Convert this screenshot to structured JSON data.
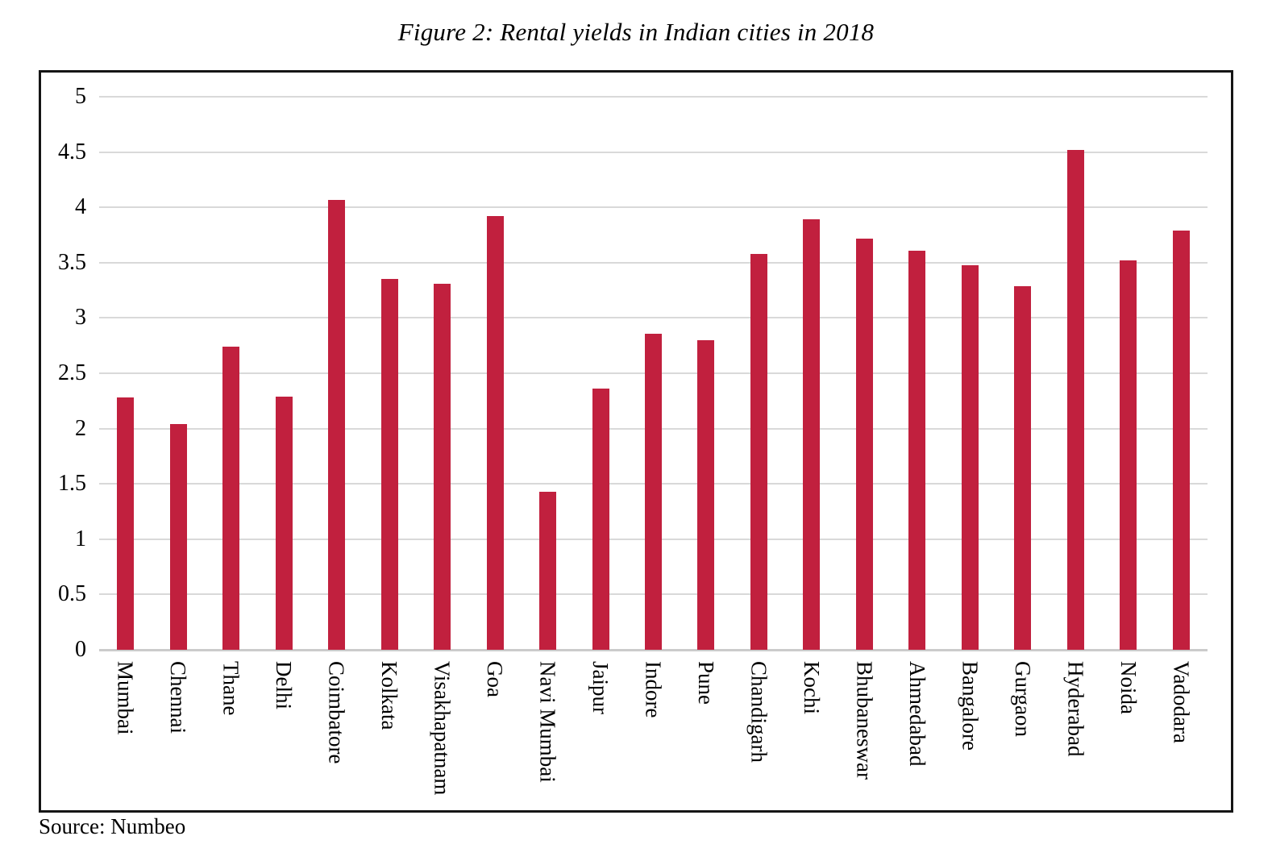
{
  "title": "Figure 2: Rental yields in Indian cities in 2018",
  "source": "Source: Numbeo",
  "chart_data": {
    "type": "bar",
    "title": "Figure 2: Rental yields in Indian cities in 2018",
    "categories": [
      "Mumbai",
      "Chennai",
      "Thane",
      "Delhi",
      "Coimbatore",
      "Kolkata",
      "Visakhapatnam",
      "Goa",
      "Navi Mumbai",
      "Jaipur",
      "Indore",
      "Pune",
      "Chandigarh",
      "Kochi",
      "Bhubaneswar",
      "Ahmedabad",
      "Bangalore",
      "Gurgaon",
      "Hyderabad",
      "Noida",
      "Vadodara"
    ],
    "values": [
      2.28,
      2.04,
      2.74,
      2.29,
      4.07,
      3.35,
      3.31,
      3.92,
      1.43,
      2.36,
      2.86,
      2.8,
      3.58,
      3.89,
      3.72,
      3.61,
      3.48,
      3.29,
      4.52,
      3.52,
      3.79
    ],
    "xlabel": "",
    "ylabel": "",
    "ylim": [
      0,
      5
    ],
    "ytick_step": 0.5,
    "ytick_labels": [
      "5",
      "4.5",
      "4",
      "3.5",
      "3",
      "2.5",
      "2",
      "1.5",
      "1",
      "0.5",
      "0"
    ],
    "grid": true,
    "legend_position": "none",
    "bar_color": "#C1203E",
    "grid_color": "#D9D9D9",
    "baseline_color": "#CBCBCB",
    "frame_border_color": "#151515"
  }
}
